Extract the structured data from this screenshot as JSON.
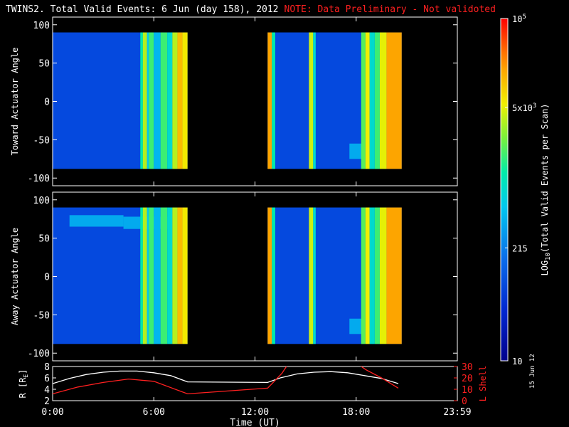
{
  "header": {
    "title": "TWINS2. Total Valid Events:  6 Jun (day 158), 2012",
    "note": "NOTE: Data Preliminary - Not validoted"
  },
  "stamp": "15 Jun 12",
  "colors": {
    "background": "#000000",
    "axes": "#ffffff",
    "note": "#ff2020",
    "r_line": "#ffffff",
    "lshell_line": "#ff2020"
  },
  "chart_data": [
    {
      "type": "heatmap",
      "panel": "top",
      "ylabel": "Toward Actuator Angle",
      "ylim": [
        -110,
        110
      ],
      "yticks": [
        100,
        50,
        0,
        -50,
        -100
      ],
      "xlim": [
        0,
        24
      ],
      "data_angle_range": [
        -88,
        90
      ],
      "background_level": 0.22,
      "data_blocks": [
        {
          "x": [
            0.0,
            8.0
          ]
        },
        {
          "x": [
            12.75,
            20.7
          ]
        }
      ],
      "bands": [
        {
          "x": [
            5.2,
            5.35
          ],
          "level": 0.55
        },
        {
          "x": [
            5.35,
            5.6
          ],
          "level": 0.7
        },
        {
          "x": [
            5.6,
            5.7
          ],
          "level": 0.45
        },
        {
          "x": [
            5.7,
            6.0
          ],
          "level": 0.6
        },
        {
          "x": [
            6.0,
            6.4
          ],
          "level": 0.42
        },
        {
          "x": [
            6.4,
            6.8
          ],
          "level": 0.6
        },
        {
          "x": [
            6.8,
            7.1
          ],
          "level": 0.5
        },
        {
          "x": [
            7.1,
            7.4
          ],
          "level": 0.7
        },
        {
          "x": [
            7.4,
            7.7
          ],
          "level": 0.82
        },
        {
          "x": [
            7.7,
            8.0
          ],
          "level": 0.76
        },
        {
          "x": [
            12.75,
            13.0
          ],
          "level": 0.85
        },
        {
          "x": [
            13.0,
            13.2
          ],
          "level": 0.55
        },
        {
          "x": [
            15.2,
            15.45
          ],
          "level": 0.72
        },
        {
          "x": [
            15.45,
            15.6
          ],
          "level": 0.5
        },
        {
          "x": [
            18.3,
            18.55
          ],
          "level": 0.62
        },
        {
          "x": [
            18.55,
            18.8
          ],
          "level": 0.75
        },
        {
          "x": [
            18.8,
            19.1
          ],
          "level": 0.5
        },
        {
          "x": [
            19.1,
            19.4
          ],
          "level": 0.6
        },
        {
          "x": [
            19.4,
            19.8
          ],
          "level": 0.74
        },
        {
          "x": [
            19.8,
            20.7
          ],
          "level": 0.85
        }
      ],
      "patches": [
        {
          "x": [
            17.6,
            18.4
          ],
          "y": [
            -75,
            -55
          ],
          "level": 0.4
        }
      ]
    },
    {
      "type": "heatmap",
      "panel": "bottom",
      "ylabel": "Away Actuator Angle",
      "ylim": [
        -110,
        110
      ],
      "yticks": [
        100,
        50,
        0,
        -50,
        -100
      ],
      "xlim": [
        0,
        24
      ],
      "data_angle_range": [
        -88,
        90
      ],
      "background_level": 0.22,
      "data_blocks": [
        {
          "x": [
            0.0,
            8.0
          ]
        },
        {
          "x": [
            12.75,
            20.7
          ]
        }
      ],
      "bands": [
        {
          "x": [
            5.2,
            5.35
          ],
          "level": 0.55
        },
        {
          "x": [
            5.35,
            5.6
          ],
          "level": 0.7
        },
        {
          "x": [
            5.6,
            5.7
          ],
          "level": 0.45
        },
        {
          "x": [
            5.7,
            6.0
          ],
          "level": 0.6
        },
        {
          "x": [
            6.0,
            6.4
          ],
          "level": 0.42
        },
        {
          "x": [
            6.4,
            6.8
          ],
          "level": 0.6
        },
        {
          "x": [
            6.8,
            7.1
          ],
          "level": 0.5
        },
        {
          "x": [
            7.1,
            7.4
          ],
          "level": 0.7
        },
        {
          "x": [
            7.4,
            7.7
          ],
          "level": 0.82
        },
        {
          "x": [
            7.7,
            8.0
          ],
          "level": 0.76
        },
        {
          "x": [
            12.75,
            13.0
          ],
          "level": 0.85
        },
        {
          "x": [
            13.0,
            13.2
          ],
          "level": 0.55
        },
        {
          "x": [
            15.2,
            15.45
          ],
          "level": 0.72
        },
        {
          "x": [
            15.45,
            15.6
          ],
          "level": 0.5
        },
        {
          "x": [
            18.3,
            18.55
          ],
          "level": 0.62
        },
        {
          "x": [
            18.55,
            18.8
          ],
          "level": 0.75
        },
        {
          "x": [
            18.8,
            19.1
          ],
          "level": 0.5
        },
        {
          "x": [
            19.1,
            19.4
          ],
          "level": 0.6
        },
        {
          "x": [
            19.4,
            19.8
          ],
          "level": 0.74
        },
        {
          "x": [
            19.8,
            20.7
          ],
          "level": 0.85
        }
      ],
      "patches": [
        {
          "x": [
            1.0,
            4.2
          ],
          "y": [
            65,
            80
          ],
          "level": 0.4
        },
        {
          "x": [
            4.2,
            6.8
          ],
          "y": [
            62,
            78
          ],
          "level": 0.4
        },
        {
          "x": [
            17.6,
            18.4
          ],
          "y": [
            -75,
            -55
          ],
          "level": 0.4
        }
      ]
    },
    {
      "type": "line",
      "panel": "orbit",
      "ylabel": "R [Rₑ]",
      "ylabel_text": "R [R",
      "ylabel_sub": "E",
      "ylabel_end": "]",
      "ylim": [
        2,
        8
      ],
      "yticks": [
        2,
        4,
        6,
        8
      ],
      "y2label": "L Shell",
      "y2lim": [
        0,
        30
      ],
      "y2ticks": [
        0,
        10,
        20,
        30
      ],
      "xlabel": "Time (UT)",
      "xlim": [
        0,
        24
      ],
      "xticks": [
        0,
        6,
        12,
        18,
        24
      ],
      "xtick_labels": [
        "0:00",
        "6:00",
        "12:00",
        "18:00",
        "23:59"
      ],
      "series": [
        {
          "axis": "left",
          "color": "#ffffff",
          "x": [
            0.0,
            1.0,
            2.0,
            3.0,
            4.0,
            5.0,
            6.0,
            7.0,
            8.0,
            12.75,
            13.5,
            14.5,
            15.5,
            16.5,
            17.5,
            18.5,
            19.5,
            20.5
          ],
          "y": [
            5.0,
            5.9,
            6.6,
            7.0,
            7.2,
            7.2,
            6.9,
            6.4,
            5.3,
            5.2,
            6.0,
            6.7,
            7.0,
            7.1,
            6.9,
            6.4,
            5.9,
            5.0
          ]
        },
        {
          "axis": "right",
          "color": "#ff2020",
          "x": [
            0.0,
            1.5,
            3.0,
            4.5,
            6.0,
            8.0,
            12.75,
            13.6,
            14.0,
            18.0,
            18.6,
            19.5,
            20.5
          ],
          "y": [
            6,
            12,
            16,
            19,
            17,
            6,
            11,
            24,
            33,
            33,
            27,
            20,
            11
          ]
        }
      ]
    }
  ],
  "colorbar": {
    "ylabel": "LOG10(Total Valid Events per Scan)",
    "ylabel_pre": "LOG",
    "ylabel_sub": "10",
    "ylabel_post": "(Total Valid Events per Scan)",
    "ticks": [
      {
        "base": "10",
        "sup": "5",
        "fraction": 1.0
      },
      {
        "base": "5x10",
        "sup": "3",
        "fraction": 0.74
      },
      {
        "base": "215",
        "sup": "",
        "fraction": 0.33
      },
      {
        "base": "10",
        "sup": "",
        "fraction": 0.0
      }
    ]
  }
}
